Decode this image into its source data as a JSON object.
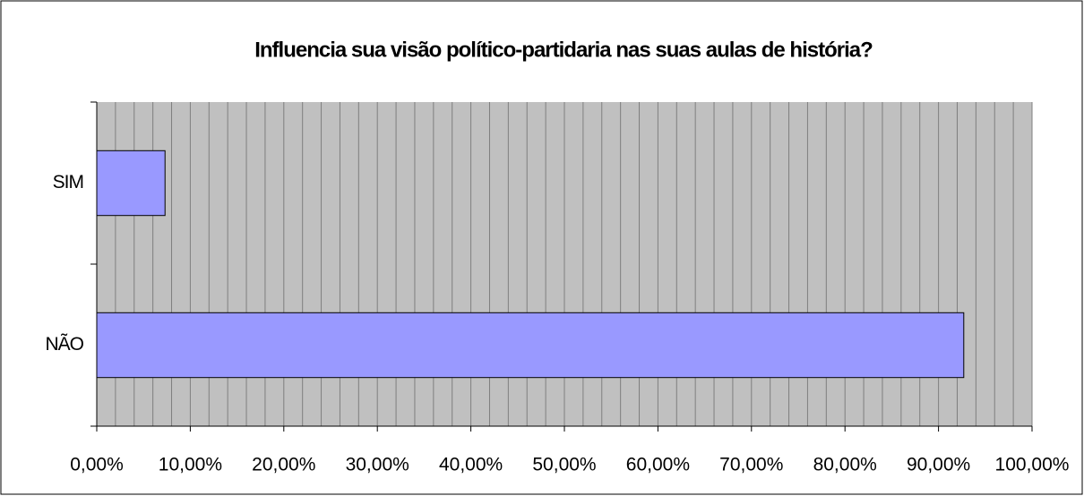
{
  "chart_data": {
    "type": "hbar",
    "title": "Influencia sua visão político-partidaria nas suas aulas de história?",
    "categories": [
      "SIM",
      "NÃO"
    ],
    "values": [
      7.3,
      92.7
    ],
    "color": "#9999ff",
    "xlim": [
      0,
      100
    ],
    "xticks": [
      {
        "value": 0,
        "label": "0,00%"
      },
      {
        "value": 10,
        "label": "10,00%"
      },
      {
        "value": 20,
        "label": "20,00%"
      },
      {
        "value": 30,
        "label": "30,00%"
      },
      {
        "value": 40,
        "label": "40,00%"
      },
      {
        "value": 50,
        "label": "50,00%"
      },
      {
        "value": 60,
        "label": "60,00%"
      },
      {
        "value": 70,
        "label": "70,00%"
      },
      {
        "value": 80,
        "label": "80,00%"
      },
      {
        "value": 90,
        "label": "90,00%"
      },
      {
        "value": 100,
        "label": "100,00%"
      }
    ],
    "xgrid": [
      0,
      2,
      4,
      6,
      8,
      10,
      12,
      14,
      16,
      18,
      20,
      22,
      24,
      26,
      28,
      30,
      32,
      34,
      36,
      38,
      40,
      42,
      44,
      46,
      48,
      50,
      52,
      54,
      56,
      58,
      60,
      62,
      64,
      66,
      68,
      70,
      72,
      74,
      76,
      78,
      80,
      82,
      84,
      86,
      88,
      90,
      92,
      94,
      96,
      98,
      100
    ],
    "grid": true
  }
}
